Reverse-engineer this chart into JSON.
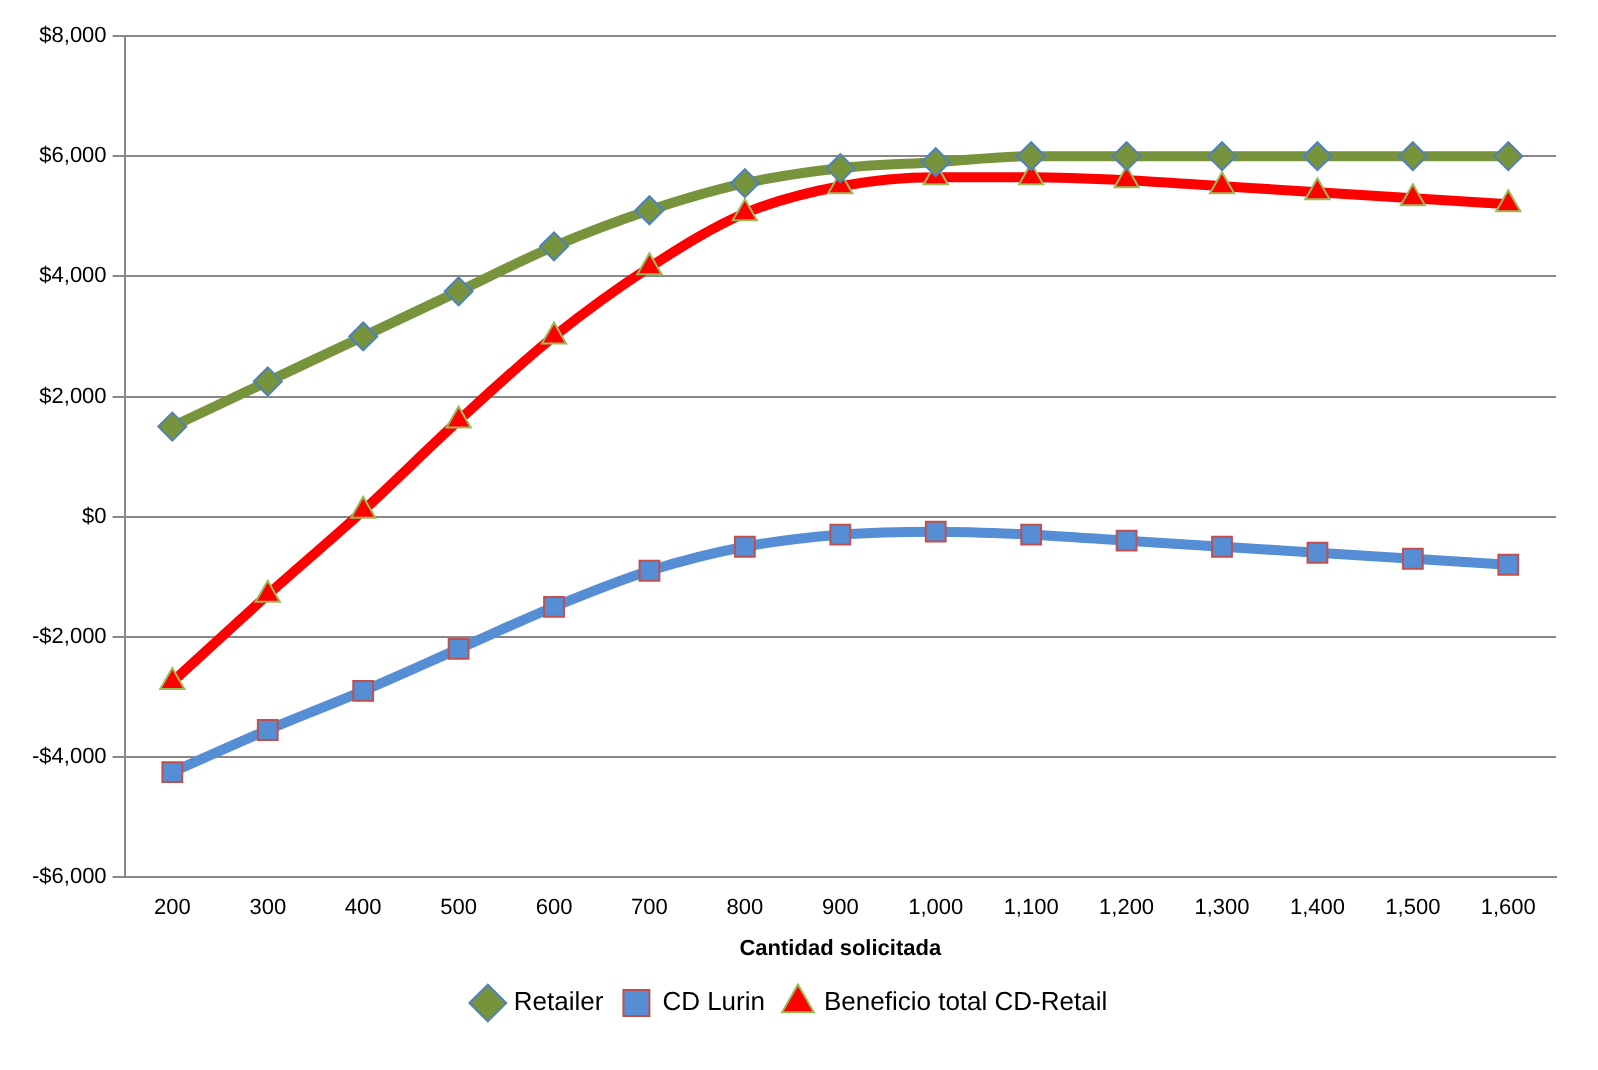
{
  "chart_data": {
    "type": "line",
    "xlabel": "Cantidad solicitada",
    "categories": [
      "200",
      "300",
      "400",
      "500",
      "600",
      "700",
      "800",
      "900",
      "1,000",
      "1,100",
      "1,200",
      "1,300",
      "1,400",
      "1,500",
      "1,600"
    ],
    "series": [
      {
        "name": "Retailer",
        "color": "#77933c",
        "marker": "diamond",
        "values": [
          1500,
          2250,
          3000,
          3750,
          4500,
          5100,
          5550,
          5800,
          5900,
          6000,
          6000,
          6000,
          6000,
          6000,
          6000
        ]
      },
      {
        "name": "CD Lurin",
        "color": "#558ed5",
        "marker": "square",
        "values": [
          -4250,
          -3550,
          -2900,
          -2200,
          -1500,
          -900,
          -500,
          -300,
          -250,
          -300,
          -400,
          -500,
          -600,
          -700,
          -800
        ]
      },
      {
        "name": "Beneficio total CD-Retail",
        "color": "#ff0000",
        "marker": "triangle",
        "values": [
          -2750,
          -1300,
          100,
          1600,
          3000,
          4150,
          5050,
          5500,
          5650,
          5650,
          5600,
          5500,
          5400,
          5300,
          5200
        ]
      }
    ],
    "ylim": [
      -6000,
      8000
    ],
    "yticks": [
      {
        "value": -6000,
        "label": "-$6,000"
      },
      {
        "value": -4000,
        "label": "-$4,000"
      },
      {
        "value": -2000,
        "label": "-$2,000"
      },
      {
        "value": 0,
        "label": "$0"
      },
      {
        "value": 2000,
        "label": "$2,000"
      },
      {
        "value": 4000,
        "label": "$4,000"
      },
      {
        "value": 6000,
        "label": "$6,000"
      },
      {
        "value": 8000,
        "label": "$8,000"
      }
    ],
    "grid": "y",
    "legend": "bottom",
    "line_style": "solid"
  }
}
